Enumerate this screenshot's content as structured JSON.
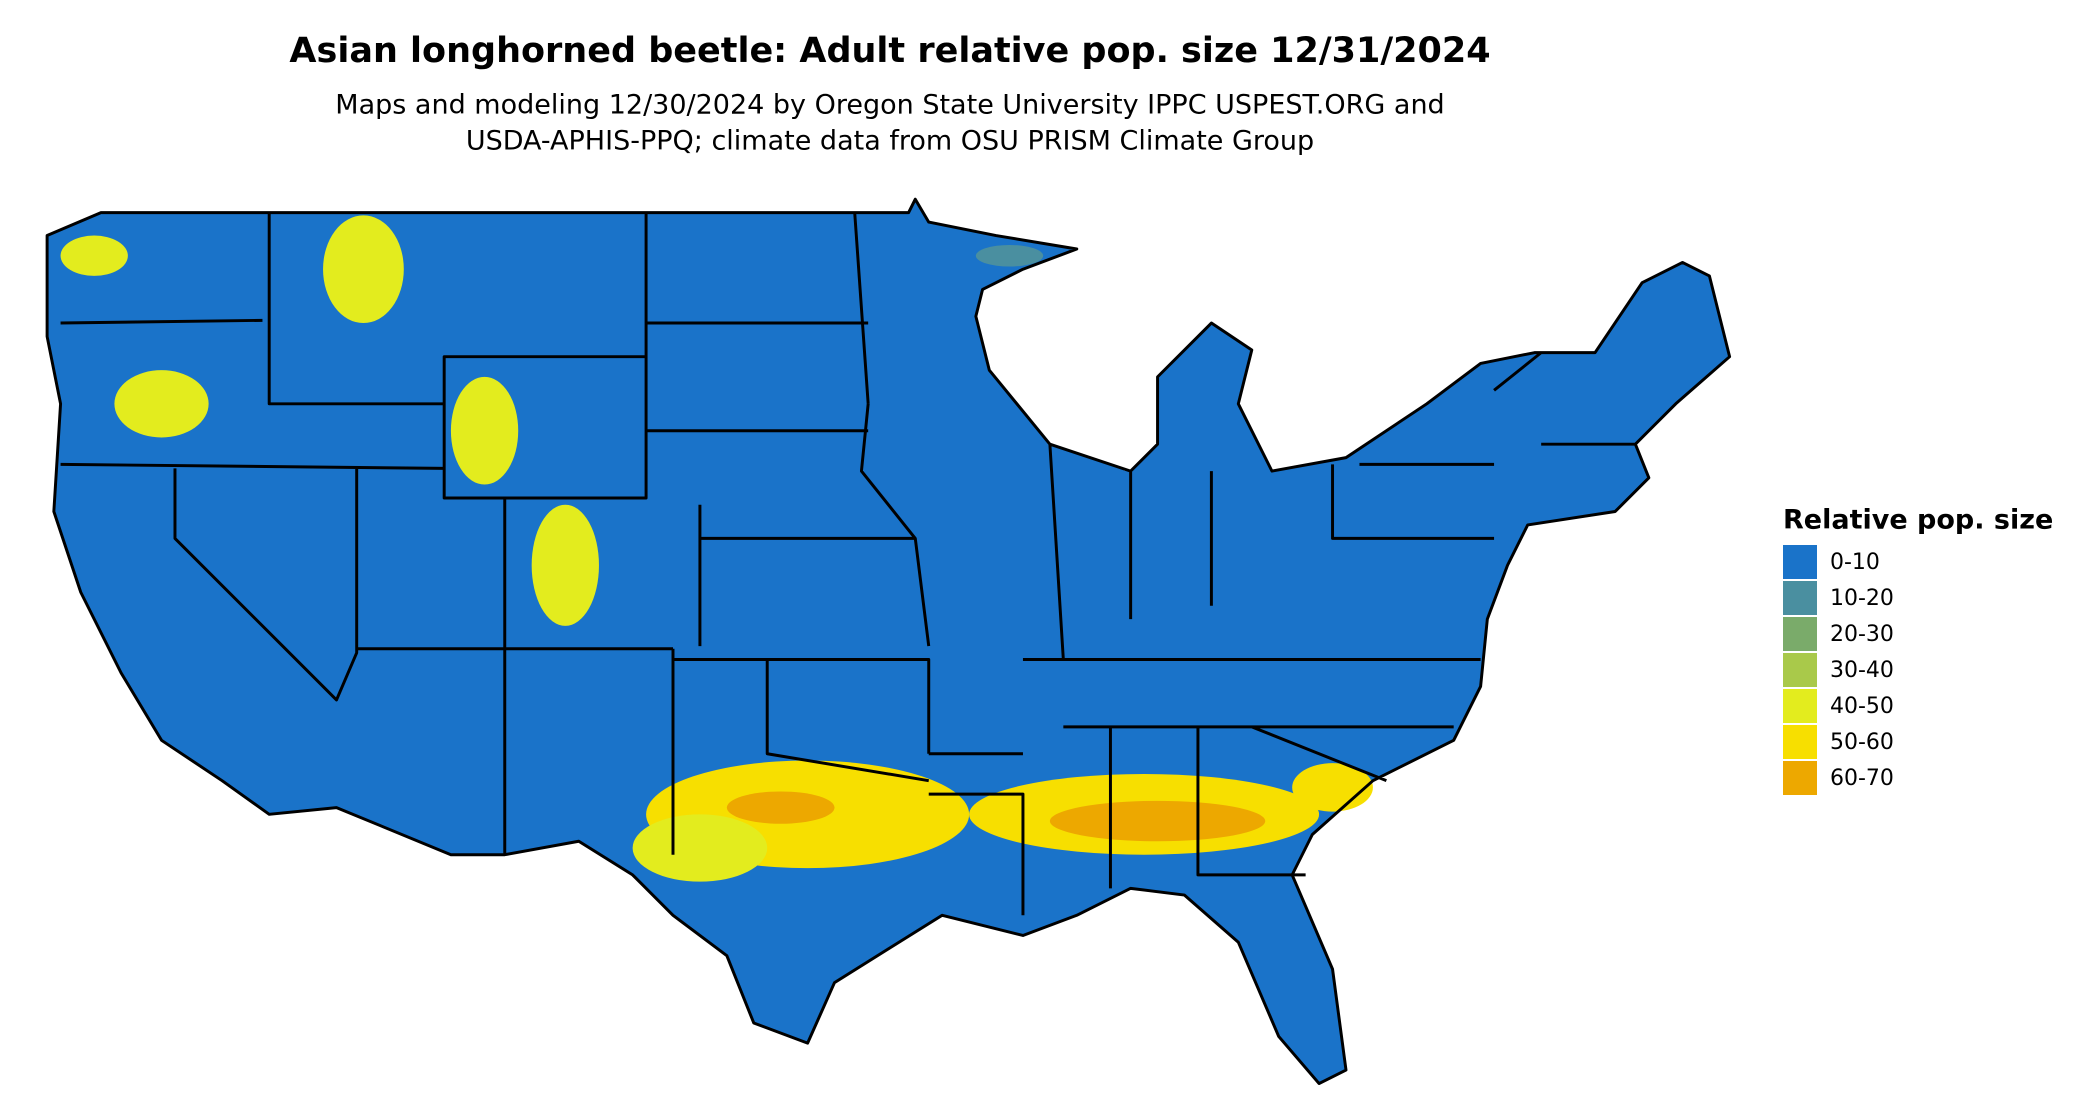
{
  "header": {
    "title": "Asian longhorned beetle: Adult relative pop. size 12/31/2024",
    "subtitle_lines": [
      "Maps and modeling 12/30/2024 by Oregon State University IPPC USPEST.ORG and",
      "USDA-APHIS-PPQ; climate data from OSU PRISM Climate Group"
    ]
  },
  "legend": {
    "title": "Relative pop. size",
    "items": [
      {
        "label": "0-10",
        "color": "#1a73c9"
      },
      {
        "label": "10-20",
        "color": "#4a8fa0"
      },
      {
        "label": "20-30",
        "color": "#7aab6a"
      },
      {
        "label": "30-40",
        "color": "#a9c94a"
      },
      {
        "label": "40-50",
        "color": "#e3ec1e"
      },
      {
        "label": "50-60",
        "color": "#f7df00"
      },
      {
        "label": "60-70",
        "color": "#eda800"
      }
    ]
  }
}
